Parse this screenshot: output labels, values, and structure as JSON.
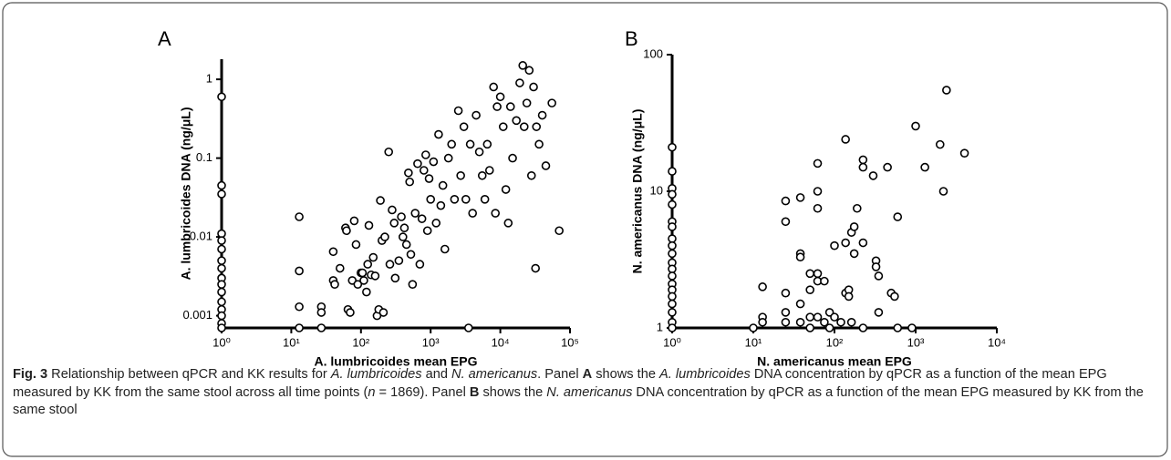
{
  "chart_data": [
    {
      "type": "scatter",
      "title": "A",
      "xlabel": "A. lumbricoides mean EPG",
      "ylabel": "A. lumbricoides DNA (ng/μL)",
      "xscale": "log",
      "yscale": "log",
      "marker_color": "#000000",
      "xlim": [
        1,
        100000
      ],
      "ylim": [
        0.0007,
        1.8
      ],
      "xticks": [
        {
          "value": 1,
          "label": "10⁰"
        },
        {
          "value": 10,
          "label": "10¹"
        },
        {
          "value": 100,
          "label": "10²"
        },
        {
          "value": 1000,
          "label": "10³"
        },
        {
          "value": 10000,
          "label": "10⁴"
        },
        {
          "value": 100000,
          "label": "10⁵"
        }
      ],
      "yticks": [
        0.001,
        0.01,
        0.1,
        1
      ],
      "x": [
        1,
        1,
        1,
        1,
        1,
        1,
        1,
        1,
        1,
        1,
        1,
        1,
        1,
        1,
        1,
        1,
        13,
        13,
        13,
        13,
        27,
        27,
        27,
        40,
        40,
        42,
        50,
        60,
        62,
        65,
        70,
        75,
        80,
        85,
        90,
        100,
        105,
        110,
        120,
        125,
        130,
        140,
        150,
        160,
        170,
        180,
        190,
        200,
        210,
        220,
        250,
        260,
        280,
        300,
        310,
        350,
        380,
        400,
        420,
        450,
        480,
        500,
        520,
        550,
        600,
        650,
        700,
        750,
        800,
        850,
        900,
        950,
        1000,
        1100,
        1200,
        1300,
        1400,
        1500,
        1600,
        1800,
        2000,
        2200,
        2500,
        2700,
        3000,
        3200,
        3500,
        3700,
        4000,
        4500,
        5000,
        5500,
        6000,
        6500,
        7000,
        8000,
        8500,
        9000,
        10000,
        11000,
        12000,
        13000,
        14000,
        15000,
        17000,
        19000,
        21000,
        22000,
        24000,
        26000,
        28000,
        30000,
        32000,
        33000,
        36000,
        40000,
        45000,
        55000,
        70000
      ],
      "values": [
        0.6,
        0.045,
        0.035,
        0.011,
        0.009,
        0.007,
        0.005,
        0.004,
        0.003,
        0.0025,
        0.002,
        0.0015,
        0.0012,
        0.001,
        0.0008,
        0.0007,
        0.018,
        0.0037,
        0.0013,
        0.0007,
        0.0013,
        0.0011,
        0.0007,
        0.0065,
        0.0028,
        0.0025,
        0.004,
        0.013,
        0.012,
        0.0012,
        0.0011,
        0.0028,
        0.016,
        0.008,
        0.0025,
        0.0035,
        0.0035,
        0.0028,
        0.002,
        0.0045,
        0.014,
        0.0033,
        0.0055,
        0.0032,
        0.001,
        0.0012,
        0.029,
        0.009,
        0.0011,
        0.01,
        0.12,
        0.0045,
        0.022,
        0.015,
        0.003,
        0.005,
        0.018,
        0.01,
        0.013,
        0.008,
        0.065,
        0.05,
        0.006,
        0.0025,
        0.02,
        0.085,
        0.0045,
        0.017,
        0.07,
        0.11,
        0.012,
        0.055,
        0.03,
        0.09,
        0.015,
        0.2,
        0.025,
        0.045,
        0.007,
        0.1,
        0.15,
        0.03,
        0.4,
        0.06,
        0.25,
        0.03,
        0.0007,
        0.15,
        0.02,
        0.35,
        0.12,
        0.06,
        0.03,
        0.15,
        0.07,
        0.8,
        0.02,
        0.45,
        0.6,
        0.25,
        0.04,
        0.015,
        0.45,
        0.1,
        0.3,
        0.9,
        1.5,
        0.25,
        0.5,
        1.3,
        0.06,
        0.8,
        0.004,
        0.25,
        0.15,
        0.35,
        0.08,
        0.5,
        0.012
      ]
    },
    {
      "type": "scatter",
      "title": "B",
      "xlabel": "N. americanus mean EPG",
      "ylabel": "N. americanus DNA (ng/μL)",
      "xscale": "log",
      "yscale": "log",
      "marker_color": "#000000",
      "xlim": [
        1,
        10000
      ],
      "ylim": [
        1,
        100
      ],
      "xticks": [
        {
          "value": 1,
          "label": "10⁰"
        },
        {
          "value": 10,
          "label": "10¹"
        },
        {
          "value": 100,
          "label": "10²"
        },
        {
          "value": 1000,
          "label": "10³"
        },
        {
          "value": 10000,
          "label": "10⁴"
        }
      ],
      "yticks": [
        1,
        10,
        100
      ],
      "x": [
        1,
        1,
        1,
        1,
        1,
        1,
        1,
        1,
        1,
        1,
        1,
        1,
        1,
        1,
        1,
        1,
        1,
        1,
        1,
        1,
        10,
        13,
        13,
        13,
        25,
        25,
        25,
        25,
        25,
        38,
        38,
        38,
        38,
        38,
        50,
        50,
        50,
        50,
        62,
        62,
        62,
        62,
        62,
        62,
        75,
        75,
        87,
        87,
        100,
        100,
        120,
        137,
        137,
        137,
        150,
        150,
        162,
        162,
        175,
        175,
        190,
        225,
        225,
        225,
        225,
        300,
        325,
        325,
        350,
        350,
        450,
        500,
        550,
        600,
        600,
        900,
        1000,
        1300,
        2000,
        2200,
        2400,
        4000
      ],
      "values": [
        21,
        14,
        10.5,
        9.5,
        8,
        6,
        5.5,
        4.5,
        4,
        3.5,
        3,
        2.7,
        2.4,
        2.1,
        1.9,
        1.7,
        1.5,
        1.3,
        1.1,
        1,
        1,
        2,
        1.2,
        1.1,
        8.5,
        6,
        1.8,
        1.3,
        1.1,
        9,
        3.5,
        3.3,
        1.5,
        1.1,
        2.5,
        1.9,
        1.2,
        1,
        16,
        10,
        7.5,
        2.5,
        2.2,
        1.2,
        2.2,
        1.1,
        1.3,
        1,
        4,
        1.2,
        1.1,
        24,
        4.2,
        1.8,
        1.9,
        1.7,
        1.1,
        5,
        5.5,
        3.5,
        7.5,
        17,
        15,
        4.2,
        1,
        13,
        3.1,
        2.8,
        2.4,
        1.3,
        15,
        1.8,
        1.7,
        6.5,
        1,
        1,
        30,
        15,
        22,
        10,
        55,
        19
      ]
    }
  ],
  "caption": {
    "segments": [
      {
        "text": "Fig. 3",
        "style": "bold"
      },
      {
        "text": " Relationship between qPCR and KK results for ",
        "style": "normal"
      },
      {
        "text": "A. lumbricoides",
        "style": "italic"
      },
      {
        "text": " and ",
        "style": "normal"
      },
      {
        "text": "N. americanus",
        "style": "italic"
      },
      {
        "text": ". Panel ",
        "style": "normal"
      },
      {
        "text": "A",
        "style": "bold"
      },
      {
        "text": " shows the ",
        "style": "normal"
      },
      {
        "text": "A. lumbricoides",
        "style": "italic"
      },
      {
        "text": " DNA concentration by qPCR as a function of the mean EPG measured by KK from the same stool across all time points (",
        "style": "normal"
      },
      {
        "text": "n",
        "style": "italic"
      },
      {
        "text": " = 1869). Panel ",
        "style": "normal"
      },
      {
        "text": "B",
        "style": "bold"
      },
      {
        "text": " shows the ",
        "style": "normal"
      },
      {
        "text": "N. americanus",
        "style": "italic"
      },
      {
        "text": " DNA concentration by qPCR as a function of the mean EPG measured by KK from the same stool",
        "style": "normal"
      }
    ]
  }
}
